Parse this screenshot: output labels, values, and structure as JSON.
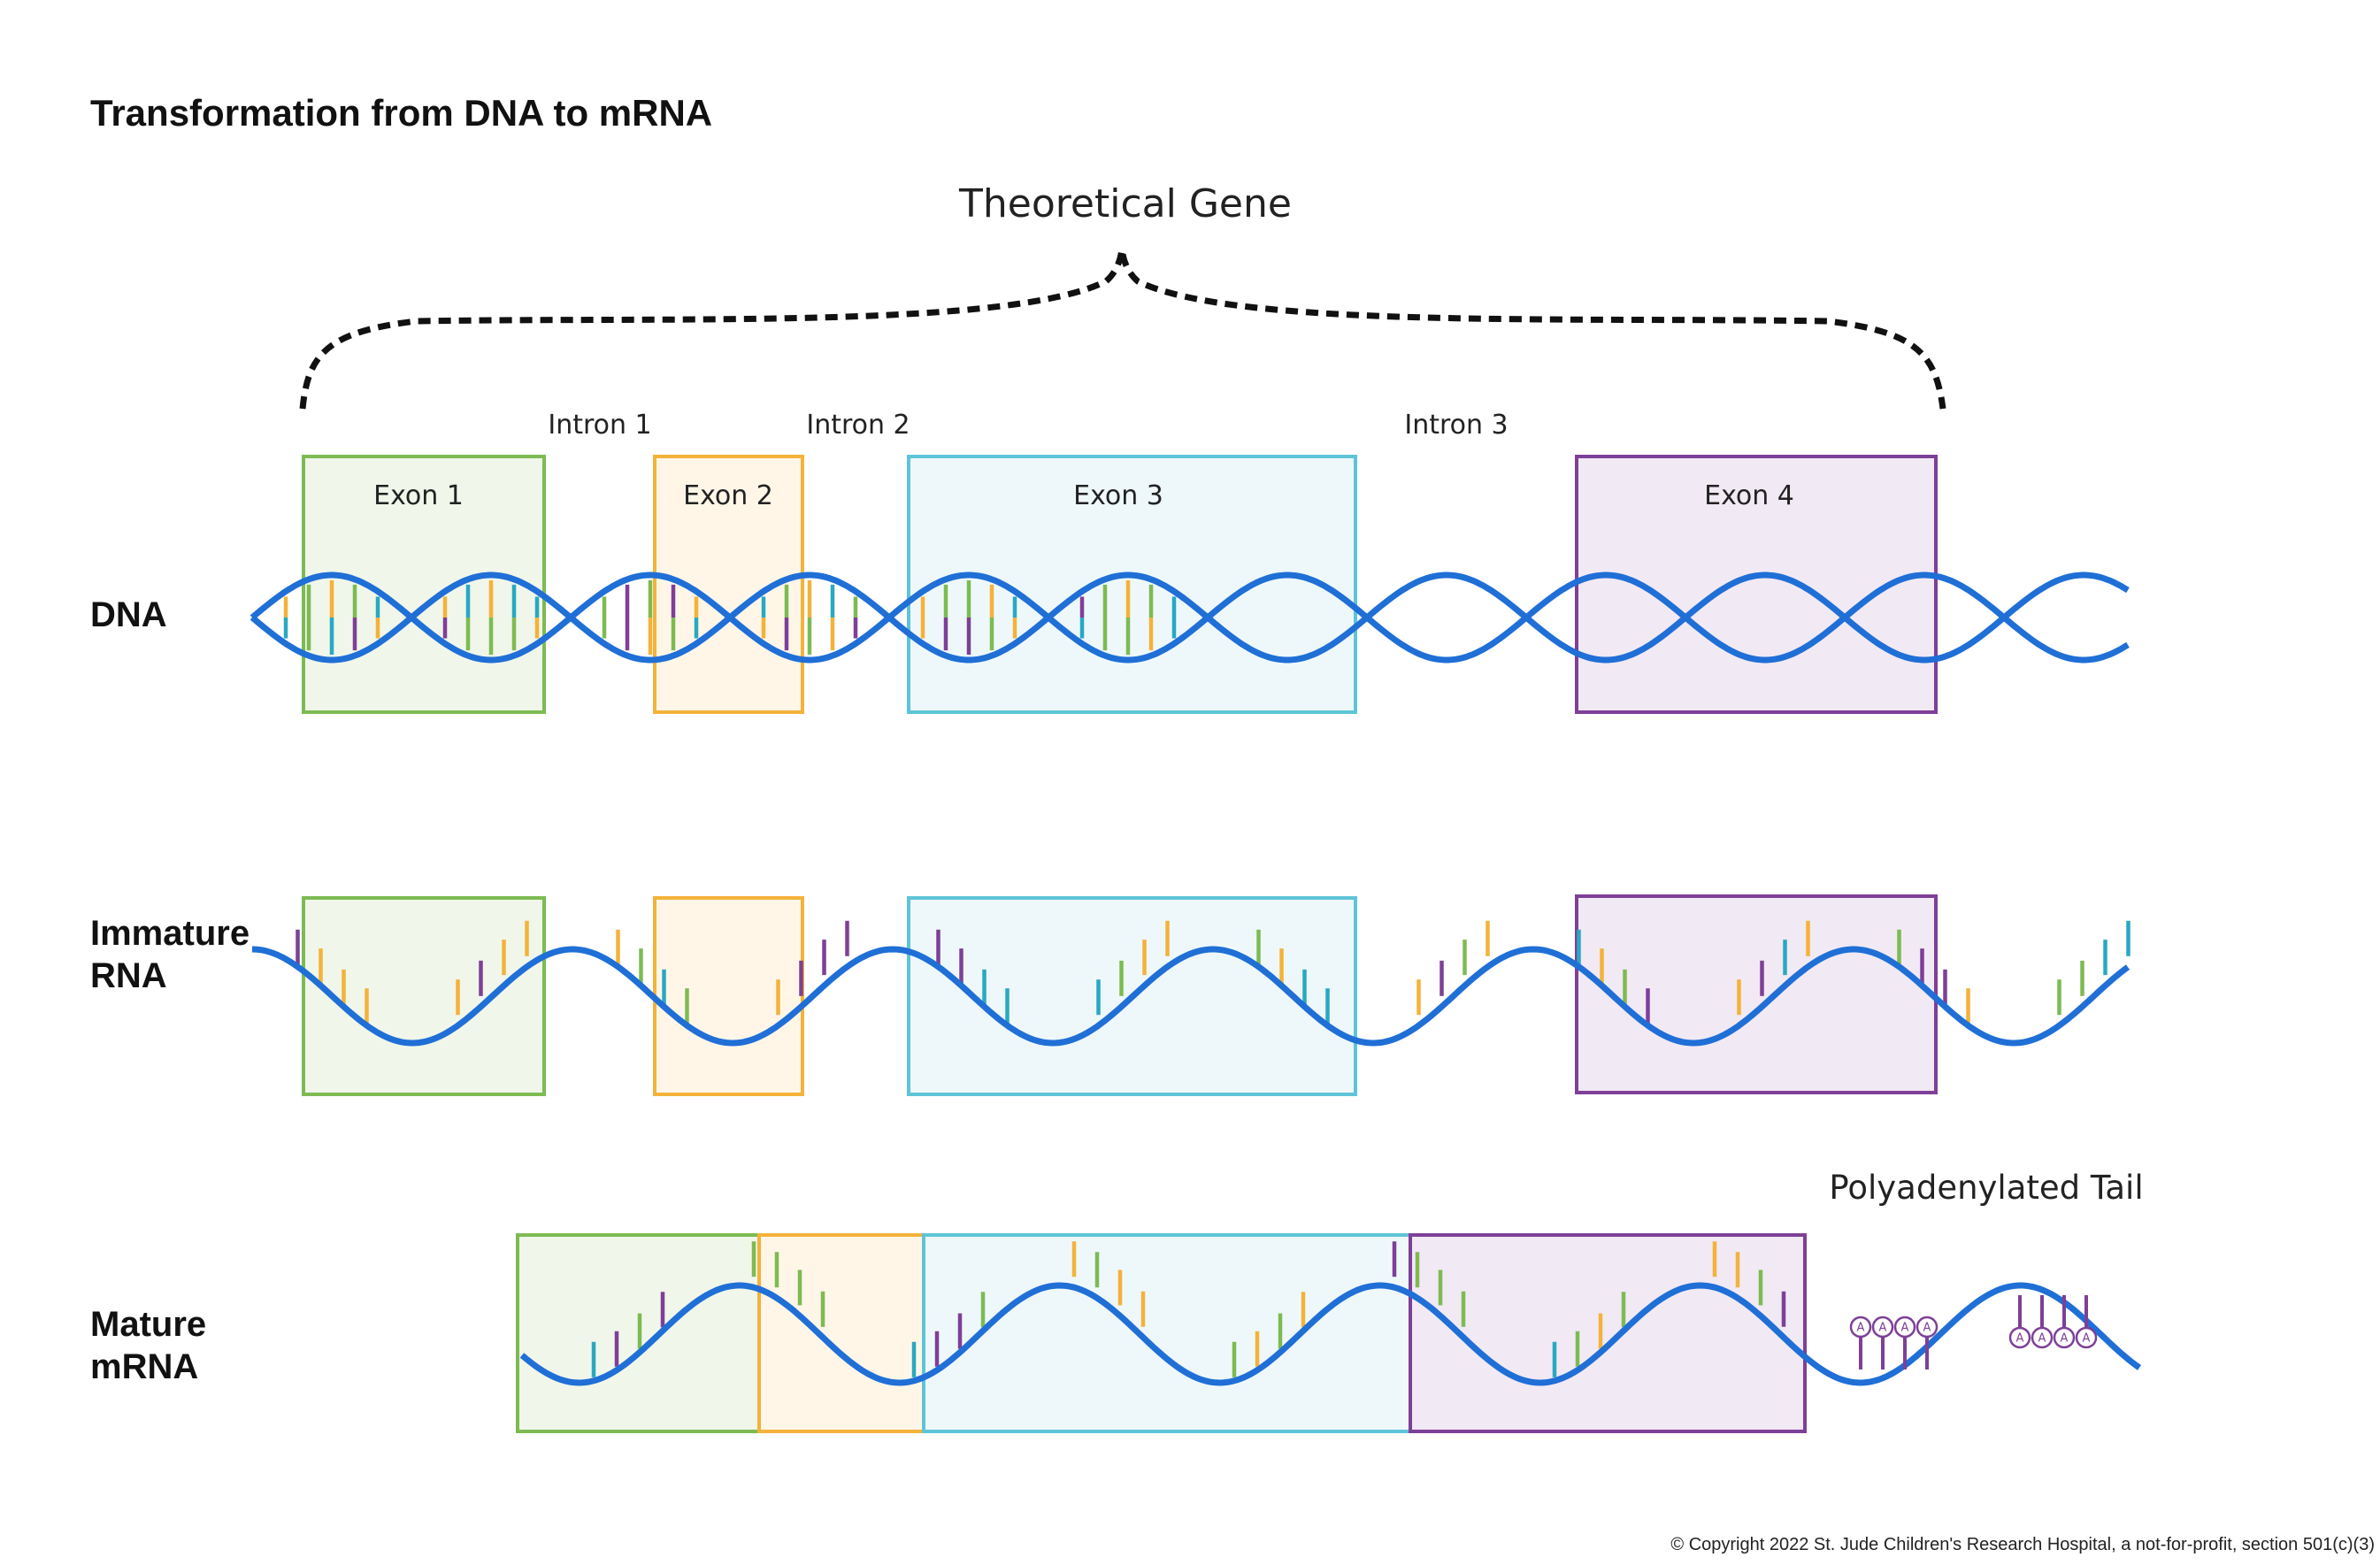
{
  "title": "Transformation from DNA to mRNA",
  "gene_label": "Theoretical Gene",
  "rows": {
    "dna": "DNA",
    "immature_rna_line1": "Immature",
    "immature_rna_line2": "RNA",
    "mature_mrna_line1": "Mature",
    "mature_mrna_line2": "mRNA"
  },
  "exons": [
    {
      "label": "Exon 1",
      "color": "#7dbb52",
      "fill": "#f0f6ea"
    },
    {
      "label": "Exon 2",
      "color": "#f4b23a",
      "fill": "#fff6e8"
    },
    {
      "label": "Exon 3",
      "color": "#5ec4d8",
      "fill": "#eef8fb"
    },
    {
      "label": "Exon 4",
      "color": "#7e3f98",
      "fill": "#f1e9f4"
    }
  ],
  "introns": [
    {
      "label": "Intron 1"
    },
    {
      "label": "Intron 2"
    },
    {
      "label": "Intron 3"
    }
  ],
  "poly_a": {
    "label": "Polyadenylated Tail",
    "letter": "A"
  },
  "copyright": "© Copyright 2022 St. Jude Children's Research Hospital, a not-for-profit, section 501(c)(3)",
  "colors": {
    "strand": "#1f6fd6",
    "base_green": "#7dbb52",
    "base_orange": "#f4b23a",
    "base_cyan": "#29a8c2",
    "base_purple": "#7e3f98",
    "brace": "#111111"
  }
}
